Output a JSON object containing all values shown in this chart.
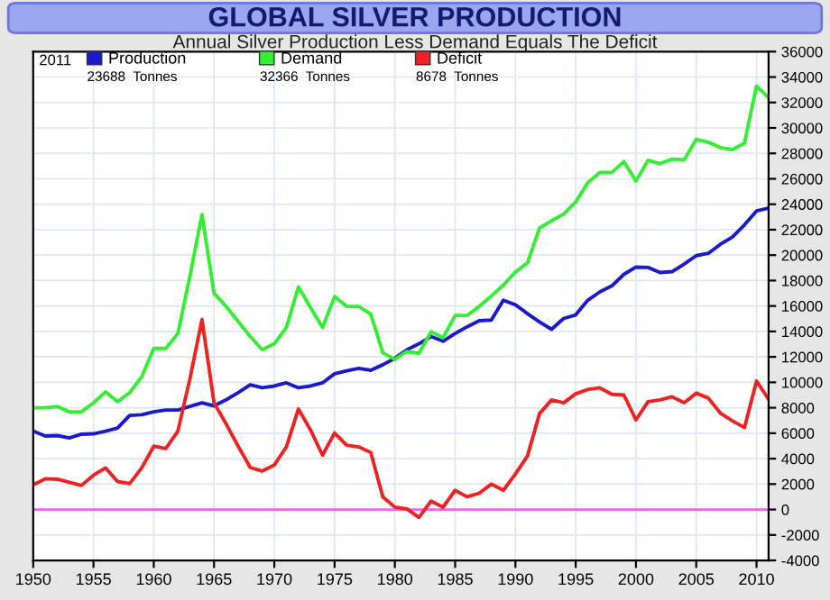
{
  "chart_data": {
    "type": "line",
    "title": "GLOBAL SILVER PRODUCTION",
    "subtitle": "Annual Silver Production Less Demand Equals The Deficit",
    "x": [
      1950,
      1951,
      1952,
      1953,
      1954,
      1955,
      1956,
      1957,
      1958,
      1959,
      1960,
      1961,
      1962,
      1963,
      1964,
      1965,
      1966,
      1967,
      1968,
      1969,
      1970,
      1971,
      1972,
      1973,
      1974,
      1975,
      1976,
      1977,
      1978,
      1979,
      1980,
      1981,
      1982,
      1983,
      1984,
      1985,
      1986,
      1987,
      1988,
      1989,
      1990,
      1991,
      1992,
      1993,
      1994,
      1995,
      1996,
      1997,
      1998,
      1999,
      2000,
      2001,
      2002,
      2003,
      2004,
      2005,
      2006,
      2007,
      2008,
      2009,
      2010,
      2011
    ],
    "series": [
      {
        "name": "Production",
        "color": "#1a1acc",
        "values": [
          6160,
          5780,
          5810,
          5630,
          5920,
          5950,
          6160,
          6400,
          7400,
          7450,
          7680,
          7820,
          7820,
          8100,
          8390,
          8150,
          8620,
          9190,
          9810,
          9570,
          9710,
          9960,
          9570,
          9710,
          9960,
          10670,
          10900,
          11100,
          10950,
          11380,
          11890,
          12560,
          13030,
          13600,
          13230,
          13840,
          14370,
          14840,
          14900,
          16450,
          16100,
          15400,
          14740,
          14170,
          15020,
          15300,
          16450,
          17110,
          17580,
          18490,
          19060,
          19030,
          18630,
          18700,
          19290,
          19960,
          20140,
          20850,
          21420,
          22380,
          23470,
          23688
        ]
      },
      {
        "name": "Demand",
        "color": "#33ee33",
        "values": [
          8000,
          8000,
          8100,
          7680,
          7680,
          8390,
          9250,
          8480,
          9190,
          10430,
          12660,
          12660,
          13840,
          18350,
          23190,
          17010,
          15970,
          14790,
          13600,
          12560,
          13030,
          14310,
          17500,
          15880,
          14310,
          16730,
          15970,
          15970,
          15360,
          12320,
          11800,
          12420,
          12280,
          13980,
          13510,
          15260,
          15260,
          15970,
          16780,
          17640,
          18680,
          19390,
          22130,
          22700,
          23230,
          24180,
          25690,
          26500,
          26500,
          27350,
          25830,
          27450,
          27200,
          27550,
          27500,
          29100,
          28880,
          28450,
          28300,
          28800,
          33300,
          32366
        ]
      },
      {
        "name": "Deficit",
        "color": "#ee2222",
        "values": [
          1940,
          2420,
          2380,
          2130,
          1890,
          2700,
          3270,
          2200,
          2030,
          3270,
          4980,
          4800,
          6160,
          10280,
          14940,
          8390,
          6730,
          4980,
          3310,
          3030,
          3500,
          4920,
          7910,
          6260,
          4270,
          6020,
          5060,
          4920,
          4490,
          1000,
          190,
          50,
          -620,
          660,
          190,
          1510,
          1000,
          1280,
          2000,
          1510,
          2790,
          4210,
          7540,
          8620,
          8390,
          9100,
          9430,
          9570,
          9050,
          9000,
          7050,
          8480,
          8620,
          8860,
          8390,
          9150,
          8760,
          7580,
          6970,
          6440,
          10100,
          8678
        ]
      }
    ],
    "legend": "top left",
    "legend_title": "2011",
    "annotations": [
      "23688  Tonnes",
      "32366  Tonnes",
      "8678  Tonnes"
    ],
    "xlim": [
      1950,
      2011
    ],
    "xticks": [
      1950,
      1955,
      1960,
      1965,
      1970,
      1975,
      1980,
      1985,
      1990,
      1995,
      2000,
      2005,
      2010
    ],
    "ylim": [
      -4000,
      36000
    ],
    "yticks": [
      -4000,
      -2000,
      0,
      2000,
      4000,
      6000,
      8000,
      10000,
      12000,
      14000,
      16000,
      18000,
      20000,
      22000,
      24000,
      26000,
      28000,
      30000,
      32000,
      34000,
      36000
    ],
    "ref_lines": [
      {
        "axis": "y",
        "value": 0,
        "color": "#ee66ee"
      }
    ],
    "grid": true
  }
}
